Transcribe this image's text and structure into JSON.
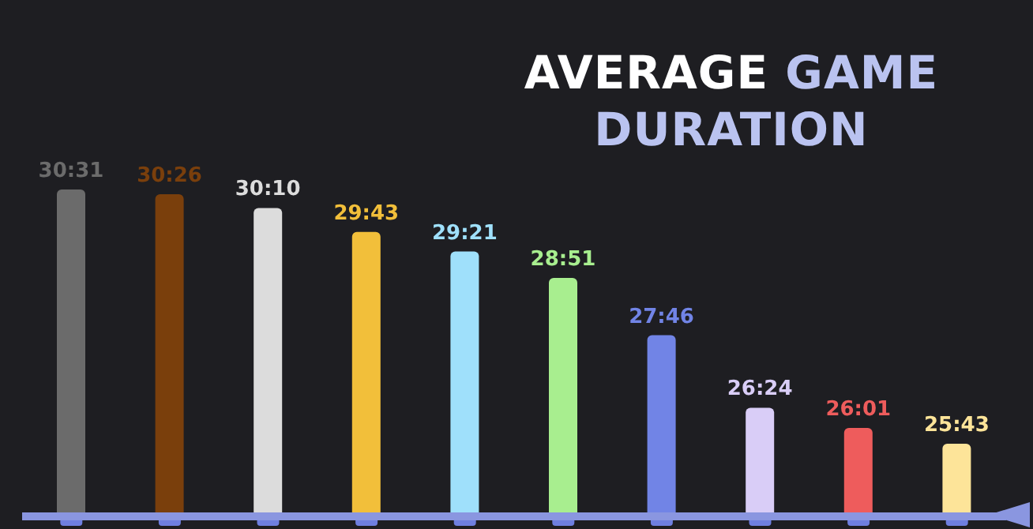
{
  "chart_data": {
    "type": "bar",
    "title": "AVERAGE GAME DURATION",
    "categories": [
      null,
      null,
      null,
      null,
      null,
      null,
      null,
      null,
      null,
      null
    ],
    "values": [
      30.52,
      30.43,
      30.17,
      29.72,
      29.35,
      28.85,
      27.77,
      26.4,
      26.02,
      25.72
    ],
    "value_labels": [
      "30:31",
      "30:26",
      "30:10",
      "29:43",
      "29:21",
      "28:51",
      "27:46",
      "26:24",
      "26:01",
      "25:43"
    ],
    "colors": [
      "#6b6b6b",
      "#7a3f0c",
      "#dcdcdc",
      "#f2bf3a",
      "#9fe0fb",
      "#a8ee8f",
      "#7184e6",
      "#d9cdf7",
      "#ee5c5c",
      "#fde499"
    ],
    "ylim": [
      24.35,
      30.52
    ],
    "grid": false,
    "legend": false
  }
}
